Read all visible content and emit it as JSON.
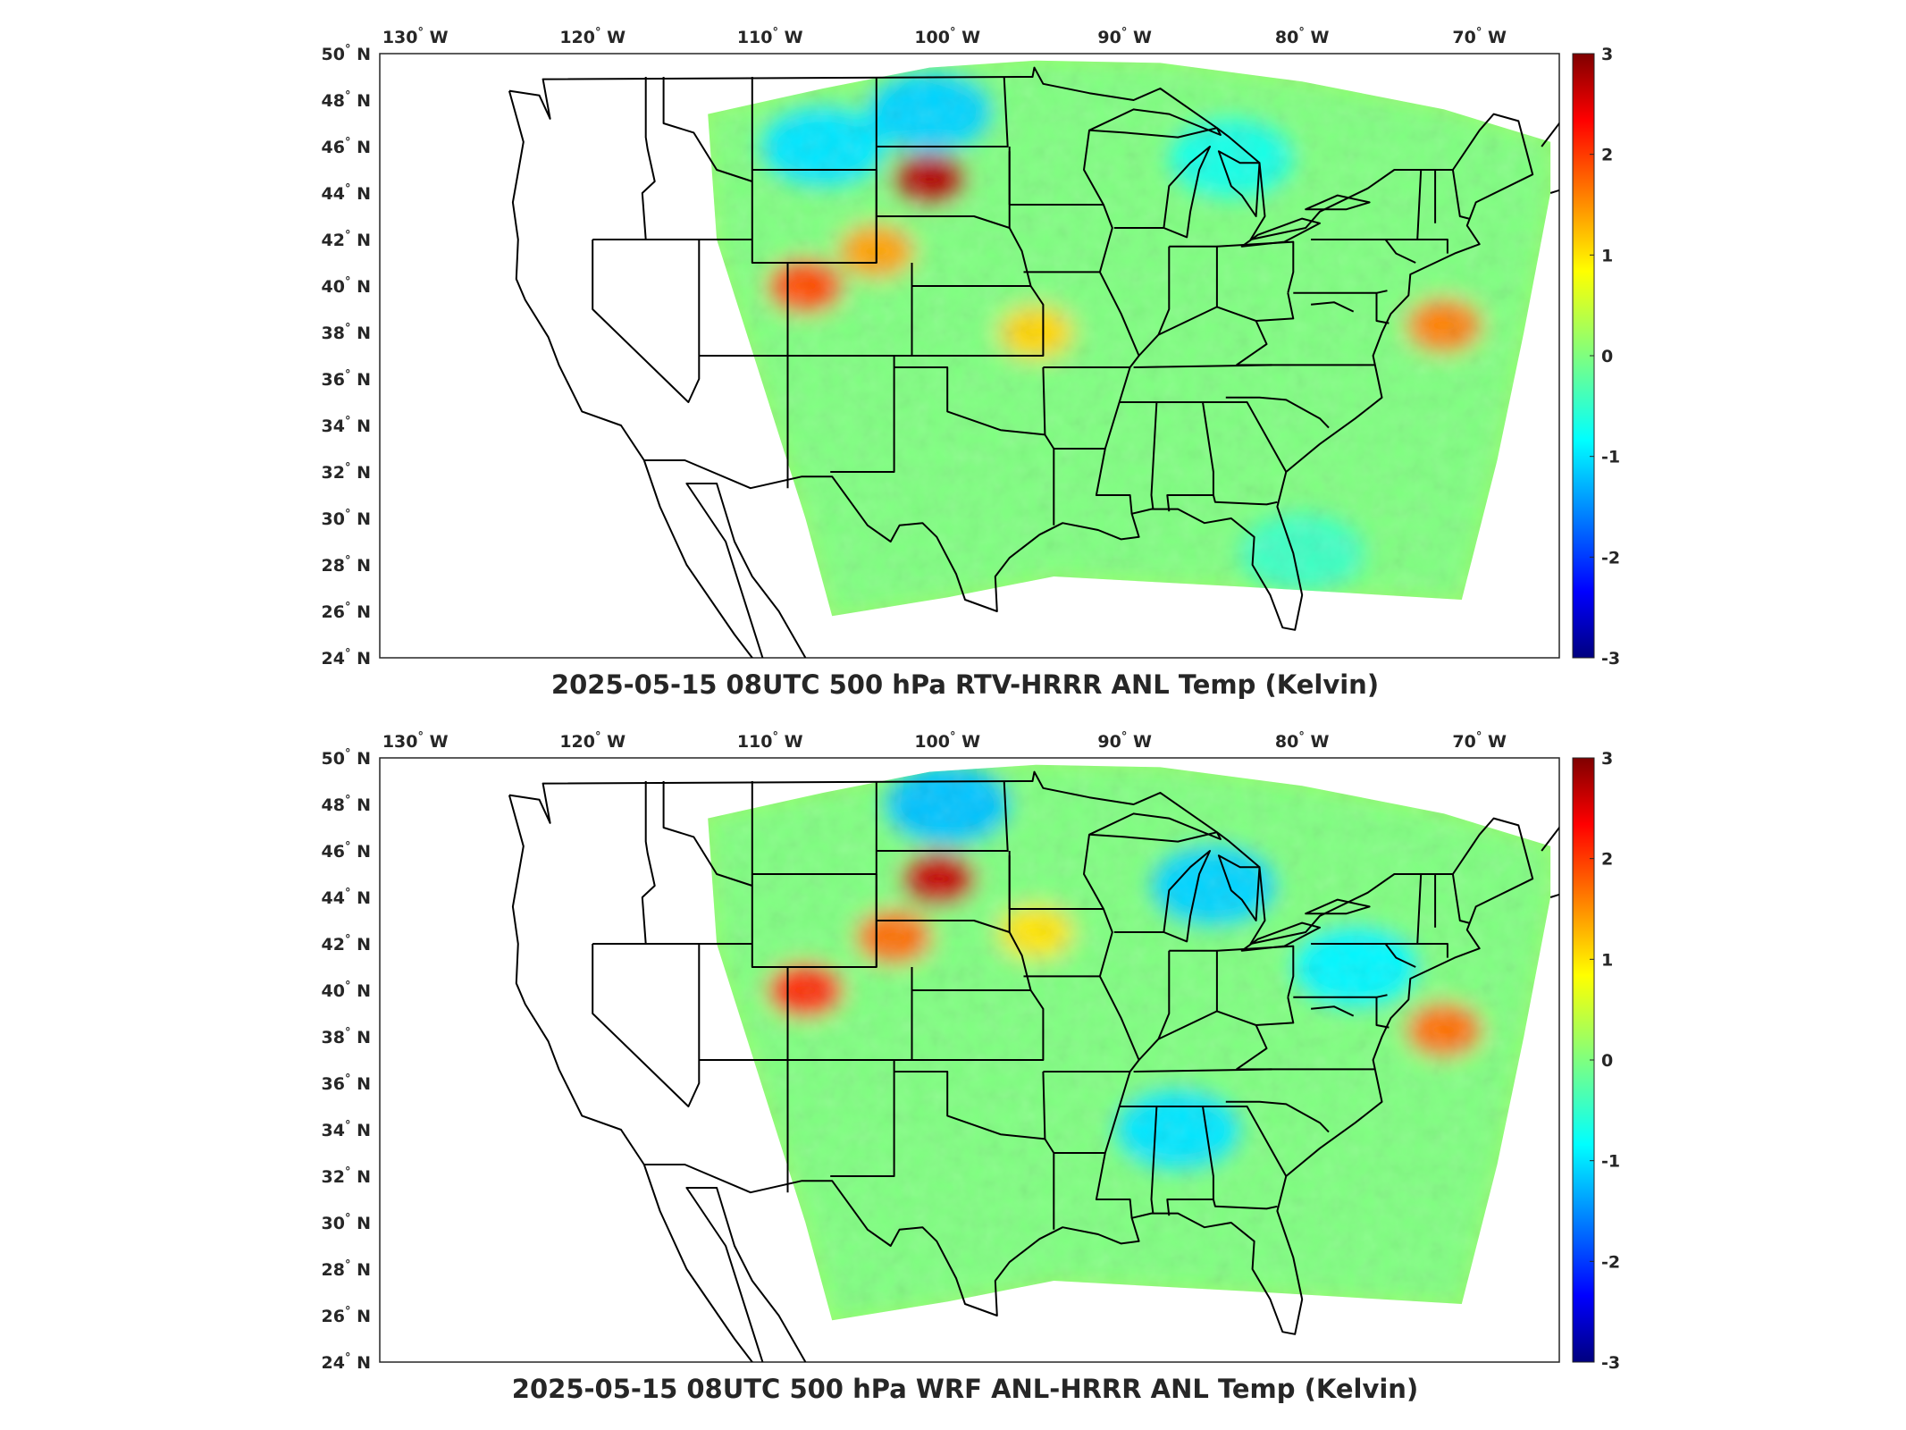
{
  "panels": [
    {
      "title": "2025-05-15 08UTC 500 hPa RTV-HRRR ANL Temp (Kelvin)",
      "hot_spots": [
        {
          "lon": -101,
          "lat": 44.6,
          "value": 2.7
        },
        {
          "lon": -108,
          "lat": 40.0,
          "value": 1.8
        },
        {
          "lon": -104,
          "lat": 41.5,
          "value": 1.3
        },
        {
          "lon": -72,
          "lat": 38.3,
          "value": 1.5
        },
        {
          "lon": -95,
          "lat": 38.0,
          "value": 1.0
        }
      ],
      "cold_spots": [
        {
          "lon": -101,
          "lat": 47.5,
          "value": -1.0
        },
        {
          "lon": -107,
          "lat": 46.0,
          "value": -0.9
        },
        {
          "lon": -84,
          "lat": 45.5,
          "value": -0.6
        },
        {
          "lon": -80,
          "lat": 28.5,
          "value": -0.4
        }
      ]
    },
    {
      "title": "2025-05-15 08UTC 500 hPa WRF ANL-HRRR ANL Temp (Kelvin)",
      "hot_spots": [
        {
          "lon": -100.5,
          "lat": 44.8,
          "value": 2.6
        },
        {
          "lon": -108,
          "lat": 40.0,
          "value": 2.0
        },
        {
          "lon": -103,
          "lat": 42.3,
          "value": 1.6
        },
        {
          "lon": -72,
          "lat": 38.3,
          "value": 1.6
        },
        {
          "lon": -95,
          "lat": 42.5,
          "value": 0.9
        }
      ],
      "cold_spots": [
        {
          "lon": -100,
          "lat": 48.0,
          "value": -1.1
        },
        {
          "lon": -87,
          "lat": 34.0,
          "value": -0.9
        },
        {
          "lon": -85,
          "lat": 44.5,
          "value": -1.0
        },
        {
          "lon": -77,
          "lat": 41.0,
          "value": -0.8
        }
      ]
    }
  ],
  "axes": {
    "lon_ticks": [
      "130",
      "120",
      "110",
      "100",
      "90",
      "80",
      "70"
    ],
    "lon_suffix": "W",
    "lat_ticks": [
      "24",
      "26",
      "28",
      "30",
      "32",
      "34",
      "36",
      "38",
      "40",
      "42",
      "44",
      "46",
      "48",
      "50"
    ],
    "lat_suffix": "N",
    "degree_symbol": "°"
  },
  "colorbar": {
    "ticks": [
      "3",
      "2",
      "1",
      "0",
      "-1",
      "-2",
      "-3"
    ],
    "range": [
      -3,
      3
    ],
    "colormap": "jet"
  },
  "colors": {
    "background": "#ffffff",
    "outline": "#000000",
    "text": "#262626"
  }
}
